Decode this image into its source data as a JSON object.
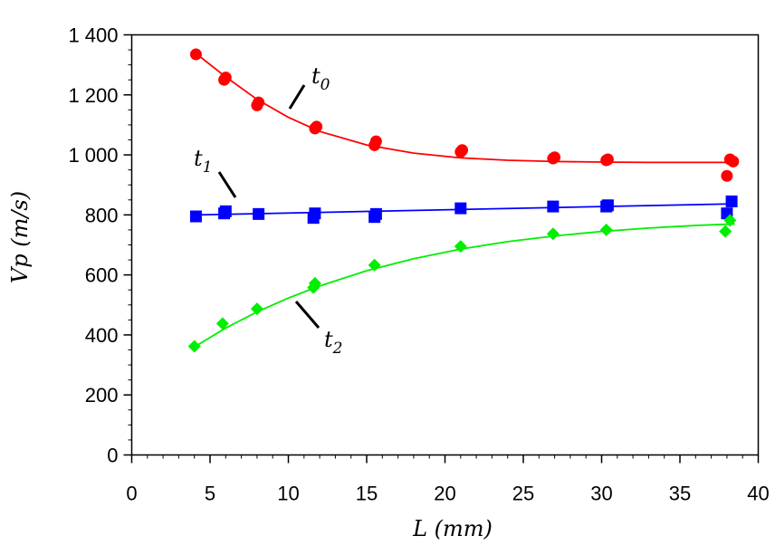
{
  "chart_data": {
    "type": "scatter",
    "xlabel": "L (mm)",
    "ylabel": "Vp (m/s)",
    "xlim": [
      0,
      40
    ],
    "ylim": [
      0,
      1400
    ],
    "x_ticks": [
      0,
      5,
      10,
      15,
      20,
      25,
      30,
      35,
      40
    ],
    "x_tick_labels": [
      "0",
      "5",
      "10",
      "15",
      "20",
      "25",
      "30",
      "35",
      "40"
    ],
    "y_ticks": [
      0,
      200,
      400,
      600,
      800,
      1000,
      1200,
      1400
    ],
    "y_tick_labels": [
      "0",
      "200",
      "400",
      "600",
      "800",
      "1 000",
      "1 200",
      "1 400"
    ],
    "grid": false,
    "series": [
      {
        "name": "t0",
        "color": "#ff0000",
        "marker": "circle",
        "x": [
          4.1,
          5.9,
          6.0,
          8.0,
          8.1,
          11.7,
          11.8,
          15.5,
          15.6,
          21.0,
          21.1,
          26.9,
          27.0,
          30.3,
          30.4,
          38.0,
          38.2,
          38.4
        ],
        "y": [
          1335,
          1250,
          1258,
          1165,
          1175,
          1088,
          1094,
          1032,
          1045,
          1010,
          1016,
          988,
          992,
          982,
          985,
          930,
          985,
          978
        ],
        "fit_x": [
          4.1,
          6,
          8,
          10,
          12,
          15,
          18,
          21,
          24,
          27,
          30,
          33,
          36,
          38.5
        ],
        "fit_y": [
          1338,
          1260,
          1185,
          1125,
          1078,
          1033,
          1006,
          990,
          982,
          978,
          976,
          975,
          975,
          975
        ]
      },
      {
        "name": "t1",
        "color": "#0000ff",
        "marker": "square",
        "x": [
          4.1,
          5.9,
          6.0,
          8.1,
          11.6,
          11.7,
          15.5,
          15.6,
          21.0,
          26.9,
          30.3,
          30.4,
          38.0,
          38.3
        ],
        "y": [
          795,
          805,
          812,
          803,
          790,
          805,
          793,
          803,
          822,
          828,
          828,
          832,
          805,
          845
        ],
        "fit_x": [
          4.1,
          38.5
        ],
        "fit_y": [
          800,
          837
        ]
      },
      {
        "name": "t2",
        "color": "#00ee00",
        "marker": "diamond",
        "x": [
          4.0,
          5.8,
          8.0,
          11.6,
          11.7,
          15.5,
          21.0,
          26.9,
          30.3,
          37.9,
          38.2
        ],
        "y": [
          362,
          438,
          487,
          558,
          572,
          633,
          695,
          737,
          750,
          745,
          782
        ],
        "fit_x": [
          4.0,
          6,
          8,
          10,
          12,
          15,
          18,
          21,
          24,
          27,
          30,
          33,
          36,
          38.5
        ],
        "fit_y": [
          360,
          423,
          477,
          523,
          563,
          614,
          654,
          686,
          711,
          730,
          745,
          756,
          765,
          770
        ]
      }
    ],
    "annotations": [
      {
        "base": "t",
        "sub": "0",
        "color": "#000000"
      },
      {
        "base": "t",
        "sub": "1",
        "color": "#000000"
      },
      {
        "base": "t",
        "sub": "2",
        "color": "#000000"
      }
    ]
  }
}
